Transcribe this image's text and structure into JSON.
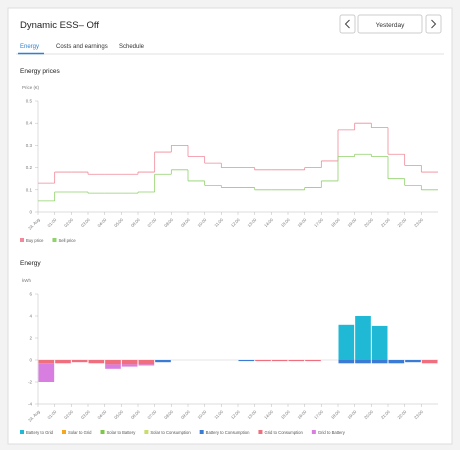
{
  "header": {
    "title": "Dynamic ESS– Off",
    "date": "Yesterday"
  },
  "tabs": [
    "Energy",
    "Costs and earnings",
    "Schedule"
  ],
  "chart_data": [
    {
      "type": "line",
      "step": true,
      "title": "Energy prices",
      "y_label": "Price (€)",
      "categories": [
        "24. Aug",
        "01:00",
        "02:00",
        "03:00",
        "04:00",
        "05:00",
        "06:00",
        "07:00",
        "08:00",
        "09:00",
        "10:00",
        "11:00",
        "12:00",
        "13:00",
        "14:00",
        "15:00",
        "16:00",
        "17:00",
        "18:00",
        "19:00",
        "20:00",
        "21:00",
        "22:00",
        "23:00"
      ],
      "ylim": [
        0,
        0.5
      ],
      "yticks": [
        0,
        0.1,
        0.2,
        0.3,
        0.4,
        0.5
      ],
      "grid": false,
      "series": [
        {
          "name": "Buy price",
          "color": "#f08a9a",
          "values": [
            0.13,
            0.18,
            0.18,
            0.17,
            0.17,
            0.17,
            0.18,
            0.27,
            0.3,
            0.25,
            0.22,
            0.2,
            0.2,
            0.19,
            0.19,
            0.19,
            0.2,
            0.23,
            0.37,
            0.4,
            0.38,
            0.26,
            0.21,
            0.18
          ]
        },
        {
          "name": "Sell price",
          "color": "#8fd16a",
          "values": [
            0.05,
            0.09,
            0.09,
            0.085,
            0.085,
            0.085,
            0.09,
            0.17,
            0.19,
            0.14,
            0.12,
            0.11,
            0.11,
            0.1,
            0.1,
            0.1,
            0.11,
            0.14,
            0.25,
            0.26,
            0.25,
            0.15,
            0.12,
            0.1
          ]
        }
      ]
    },
    {
      "type": "bar",
      "stacked": true,
      "title": "Energy",
      "y_label": "kWh",
      "categories": [
        "24. Aug",
        "01:00",
        "02:00",
        "03:00",
        "04:00",
        "05:00",
        "06:00",
        "07:00",
        "08:00",
        "09:00",
        "10:00",
        "11:00",
        "12:00",
        "13:00",
        "14:00",
        "15:00",
        "16:00",
        "17:00",
        "18:00",
        "19:00",
        "20:00",
        "21:00",
        "22:00",
        "23:00"
      ],
      "ylim": [
        -4,
        6
      ],
      "yticks": [
        -4,
        -2,
        0,
        2,
        4,
        6
      ],
      "grid": false,
      "series": [
        {
          "name": "Battery to Grid",
          "color": "#1fb9d6",
          "values": [
            0,
            0,
            0,
            0,
            0,
            0,
            0,
            0,
            0,
            0,
            0,
            0,
            0,
            0,
            0,
            0,
            0,
            0,
            3.2,
            4.0,
            3.1,
            0,
            0,
            0
          ]
        },
        {
          "name": "Solar to Grid",
          "color": "#f5a623",
          "values": [
            0,
            0,
            0,
            0,
            0,
            0,
            0,
            0,
            0,
            0,
            0,
            0,
            0,
            0,
            0,
            0,
            0,
            0,
            0,
            0,
            0,
            0,
            0,
            0
          ]
        },
        {
          "name": "Solar to Battery",
          "color": "#7cc74a",
          "values": [
            0,
            0,
            0,
            0,
            0,
            0,
            0,
            0,
            0,
            0,
            0,
            0,
            0,
            0,
            0,
            0,
            0,
            0,
            0,
            0,
            0,
            0,
            0,
            0
          ]
        },
        {
          "name": "Solar to Consumption",
          "color": "#c8dd6b",
          "values": [
            0,
            0,
            0,
            0,
            0,
            0,
            0,
            0,
            0,
            0,
            0,
            0,
            0,
            0,
            0,
            0,
            0,
            0,
            0,
            0,
            0,
            0,
            0,
            0
          ]
        },
        {
          "name": "Battery to Consumption",
          "color": "#3a7bd5",
          "values": [
            0,
            0,
            0,
            0,
            0,
            0,
            0,
            -0.2,
            0,
            0,
            0,
            0,
            -0.1,
            0,
            0,
            0,
            0,
            0,
            -0.3,
            -0.3,
            -0.3,
            -0.3,
            -0.2,
            0
          ]
        },
        {
          "name": "Grid to Consumption",
          "color": "#ef6f7f",
          "values": [
            -0.3,
            -0.3,
            -0.2,
            -0.3,
            -0.4,
            -0.4,
            -0.4,
            0,
            0,
            0,
            0,
            0,
            0,
            -0.1,
            -0.1,
            -0.1,
            -0.1,
            0,
            0,
            0,
            0,
            0,
            0,
            -0.3
          ]
        },
        {
          "name": "Grid to Battery",
          "color": "#d77ee0",
          "values": [
            -1.7,
            0,
            0,
            0,
            -0.4,
            -0.2,
            -0.1,
            0,
            0,
            0,
            0,
            0,
            0,
            0,
            0,
            0,
            0,
            0,
            0,
            0,
            0,
            0,
            0,
            0
          ]
        }
      ]
    }
  ]
}
